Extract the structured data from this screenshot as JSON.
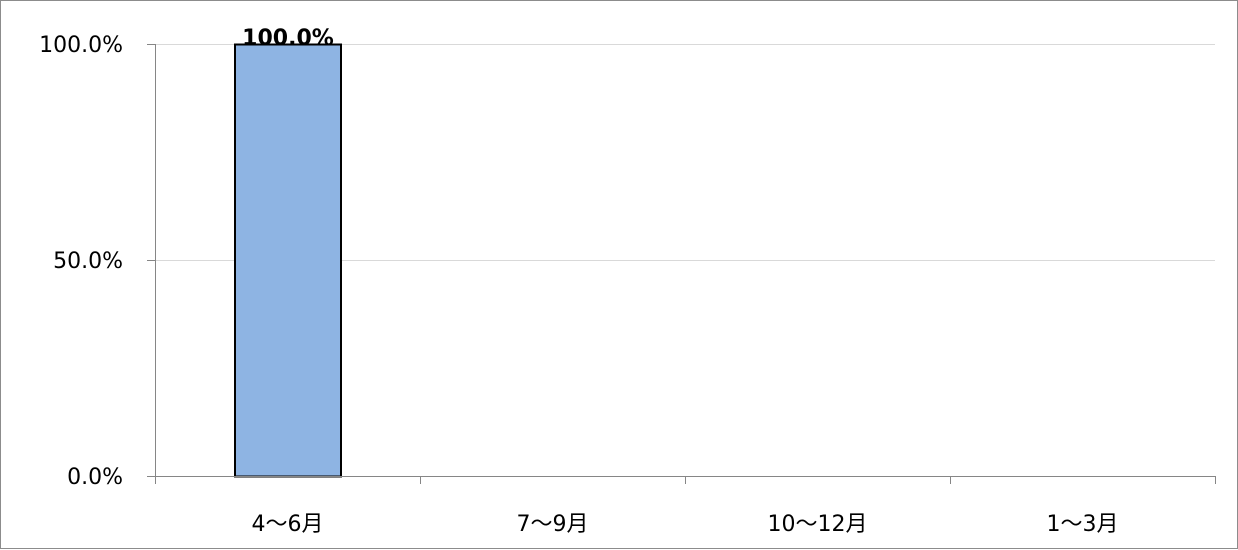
{
  "chart_data": {
    "type": "bar",
    "categories": [
      "4〜6月",
      "7〜9月",
      "10〜12月",
      "1〜3月"
    ],
    "values": [
      100.0,
      null,
      null,
      null
    ],
    "data_labels": [
      "100.0%",
      "",
      "",
      ""
    ],
    "title": "",
    "xlabel": "",
    "ylabel": "",
    "ylim": [
      0,
      100
    ],
    "y_ticks": [
      0,
      50,
      100
    ],
    "y_tick_labels": [
      "0.0%",
      "50.0%",
      "100.0%"
    ],
    "grid": true,
    "legend": "none",
    "colors": {
      "bar_fill": "#8eb4e3",
      "bar_stroke": "#000000",
      "grid": "#d9d9d9",
      "axis": "#868686"
    }
  }
}
